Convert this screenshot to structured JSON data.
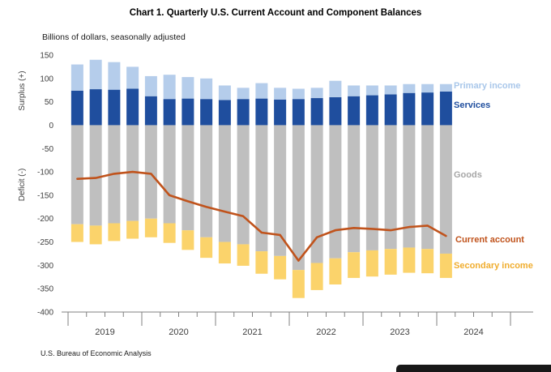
{
  "title": "Chart 1. Quarterly U.S. Current Account and Component Balances",
  "subtitle": "Billions of dollars, seasonally adjusted",
  "footer": "U.S. Bureau of Economic Analysis",
  "axis": {
    "surplus_label": "Surplus (+)",
    "deficit_label": "Deficit (-)"
  },
  "colors": {
    "primary_income": "#b5cdeb",
    "services": "#1f4e9e",
    "goods": "#bfbfbf",
    "secondary_income": "#fbd36b",
    "current_account_line": "#c0531c",
    "axis_text": "#404040",
    "axis_line": "#808080"
  },
  "chart_data": {
    "type": "bar",
    "stacked": true,
    "title": "Chart 1. Quarterly U.S. Current Account and Component Balances",
    "units": "Billions of dollars, seasonally adjusted",
    "ylim": [
      -400,
      150
    ],
    "ytick_interval": 50,
    "grid": false,
    "x_years": [
      "2019",
      "2020",
      "2021",
      "2022",
      "2023",
      "2024"
    ],
    "quarters": [
      "2019Q1",
      "2019Q2",
      "2019Q3",
      "2019Q4",
      "2020Q1",
      "2020Q2",
      "2020Q3",
      "2020Q4",
      "2021Q1",
      "2021Q2",
      "2021Q3",
      "2021Q4",
      "2022Q1",
      "2022Q2",
      "2022Q3",
      "2022Q4",
      "2023Q1",
      "2023Q2",
      "2023Q3",
      "2023Q4",
      "2024Q1"
    ],
    "series": [
      {
        "id": "services",
        "name": "Services",
        "color": "#1f4e9e",
        "values": [
          74,
          77,
          76,
          78,
          62,
          56,
          57,
          56,
          54,
          56,
          57,
          55,
          56,
          58,
          60,
          62,
          64,
          66,
          69,
          70,
          72
        ]
      },
      {
        "id": "primary-income",
        "name": "Primary income",
        "color": "#b5cdeb",
        "values": [
          56,
          63,
          59,
          47,
          43,
          52,
          46,
          44,
          31,
          24,
          33,
          25,
          22,
          22,
          35,
          23,
          21,
          19,
          19,
          18,
          16
        ]
      },
      {
        "id": "goods",
        "name": "Goods",
        "color": "#bfbfbf",
        "values": [
          -212,
          -215,
          -210,
          -205,
          -200,
          -210,
          -225,
          -240,
          -250,
          -255,
          -270,
          -280,
          -310,
          -295,
          -285,
          -272,
          -268,
          -265,
          -262,
          -265,
          -275
        ]
      },
      {
        "id": "secondary-income",
        "name": "Secondary income",
        "color": "#fbd36b",
        "values": [
          -38,
          -40,
          -38,
          -38,
          -40,
          -42,
          -42,
          -44,
          -46,
          -46,
          -48,
          -50,
          -60,
          -58,
          -56,
          -55,
          -56,
          -55,
          -54,
          -52,
          -52
        ]
      }
    ],
    "line_series": {
      "id": "current-account",
      "name": "Current account",
      "color": "#c0531c",
      "values": [
        -115,
        -113,
        -104,
        -100,
        -104,
        -150,
        -163,
        -175,
        -185,
        -195,
        -230,
        -235,
        -290,
        -240,
        -225,
        -220,
        -222,
        -225,
        -218,
        -215,
        -237
      ]
    },
    "legend": [
      {
        "label": "Primary income",
        "color": "#a9c7ea"
      },
      {
        "label": "Services",
        "color": "#1f4e9e"
      },
      {
        "label": "Goods",
        "color": "#a6a6a6"
      },
      {
        "label": "Current account",
        "color": "#c0531c"
      },
      {
        "label": "Secondary income",
        "color": "#f0ad2e"
      }
    ]
  }
}
